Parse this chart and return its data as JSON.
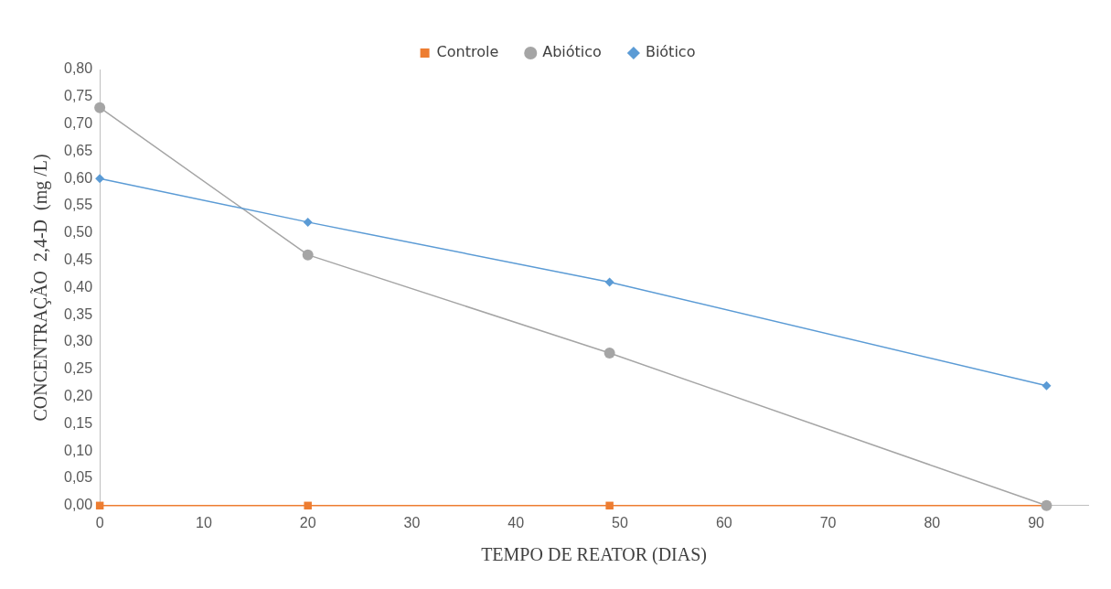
{
  "chart_data": {
    "type": "line",
    "xlabel": "TEMPO DE REATOR (DIAS)",
    "ylabel": "CONCENTRAÇÃO  2,4-D  (mg /L)",
    "x": [
      0,
      20,
      49,
      91
    ],
    "series": [
      {
        "name": "Controle",
        "color": "#ed7d31",
        "marker": "square",
        "values": [
          0,
          0,
          0,
          0
        ]
      },
      {
        "name": "Abiótico",
        "color": "#a5a5a5",
        "marker": "circle",
        "values": [
          0.73,
          0.46,
          0.28,
          0
        ]
      },
      {
        "name": "Biótico",
        "color": "#5b9bd5",
        "marker": "diamond",
        "values": [
          0.6,
          0.52,
          0.41,
          0.22
        ]
      }
    ],
    "xlim": [
      0,
      95
    ],
    "xticks": [
      0,
      10,
      20,
      30,
      40,
      50,
      60,
      70,
      80,
      90
    ],
    "ylim": [
      0,
      0.8
    ],
    "yticks": [
      {
        "value": 0,
        "label": "0,00"
      },
      {
        "value": 0.05,
        "label": "0,05"
      },
      {
        "value": 0.1,
        "label": "0,10"
      },
      {
        "value": 0.15,
        "label": "0,15"
      },
      {
        "value": 0.2,
        "label": "0,20"
      },
      {
        "value": 0.25,
        "label": "0,25"
      },
      {
        "value": 0.3,
        "label": "0,30"
      },
      {
        "value": 0.35,
        "label": "0,35"
      },
      {
        "value": 0.4,
        "label": "0,40"
      },
      {
        "value": 0.45,
        "label": "0,45"
      },
      {
        "value": 0.5,
        "label": "0,50"
      },
      {
        "value": 0.55,
        "label": "0,55"
      },
      {
        "value": 0.6,
        "label": "0,60"
      },
      {
        "value": 0.65,
        "label": "0,65"
      },
      {
        "value": 0.7,
        "label": "0,70"
      },
      {
        "value": 0.75,
        "label": "0,75"
      },
      {
        "value": 0.8,
        "label": "0,80"
      }
    ],
    "grid": false,
    "legend": "top",
    "line_style": "solid"
  }
}
